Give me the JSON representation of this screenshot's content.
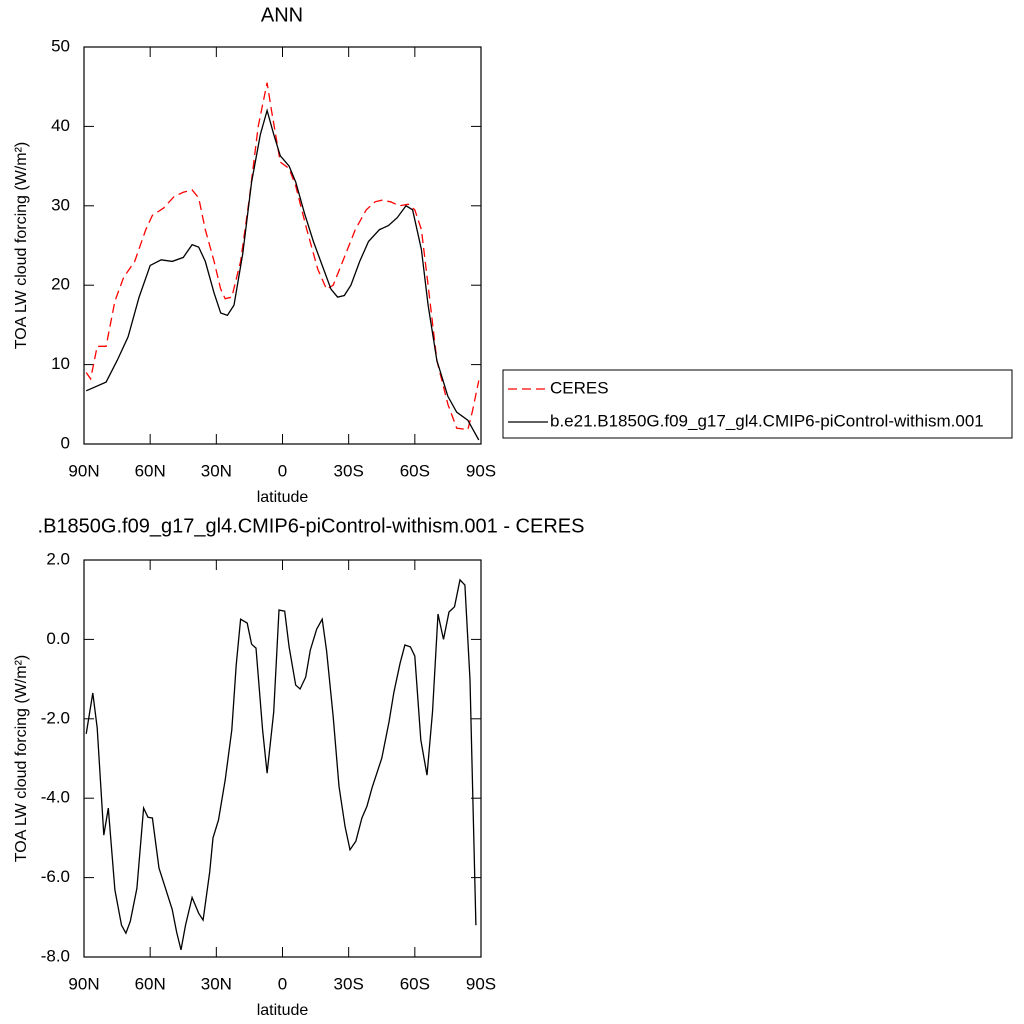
{
  "chart_data": [
    {
      "type": "line",
      "title": "ANN",
      "xlabel": "latitude",
      "ylabel": "TOA LW cloud forcing (W/m²)",
      "xlim": [
        90,
        -90
      ],
      "ylim": [
        0,
        50
      ],
      "xticks": [
        {
          "value": 90,
          "label": "90N"
        },
        {
          "value": 60,
          "label": "60N"
        },
        {
          "value": 30,
          "label": "30N"
        },
        0,
        {
          "value": -30,
          "label": "30S"
        },
        {
          "value": -60,
          "label": "60S"
        },
        {
          "value": -90,
          "label": "90S"
        }
      ],
      "yticks": [
        0,
        10,
        20,
        30,
        40,
        50
      ],
      "legend": "right",
      "series": [
        {
          "name": "CERES",
          "color": "#ff0000",
          "dashed": true,
          "x": [
            89,
            87,
            84,
            80,
            76,
            72,
            67,
            62,
            59,
            54,
            49,
            45,
            41,
            38,
            35,
            31,
            28,
            26,
            23,
            19,
            15,
            11,
            7,
            5,
            1,
            -3,
            -6,
            -11,
            -16,
            -20,
            -23,
            -28,
            -33,
            -38,
            -42,
            -45,
            -49,
            -53,
            -57,
            -60,
            -63,
            -66,
            -70,
            -75,
            -79,
            -84,
            -86,
            -89
          ],
          "values": [
            9,
            8.2,
            12.3,
            12.3,
            18,
            21,
            23,
            27,
            28.8,
            29.7,
            31.2,
            31.7,
            32,
            31,
            27,
            23,
            19.5,
            18.3,
            18.5,
            23,
            31,
            40,
            45.5,
            42,
            35.5,
            34.7,
            32.5,
            27,
            22,
            19.5,
            20,
            23.5,
            27,
            29.5,
            30.5,
            30.7,
            30.5,
            30,
            30.2,
            29.5,
            27,
            20,
            10.5,
            5,
            2,
            1.8,
            4,
            8
          ]
        },
        {
          "name": "b.e21.B1850G.f09_g17_gl4.CMIP6-piControl-withism.001",
          "color": "#000000",
          "dashed": false,
          "x": [
            89,
            80,
            75,
            70,
            65,
            60,
            55,
            50,
            45,
            41,
            38,
            35,
            31,
            28,
            25,
            22,
            18,
            14,
            10,
            7,
            4,
            1,
            -3,
            -6,
            -10,
            -14,
            -18,
            -22,
            -25,
            -28,
            -31,
            -35,
            -39,
            -44,
            -48,
            -52,
            -56,
            -59,
            -63,
            -66,
            -70,
            -75,
            -79,
            -84,
            -89
          ],
          "values": [
            6.7,
            7.8,
            10.5,
            13.5,
            18.5,
            22.5,
            23.2,
            23,
            23.5,
            25.1,
            24.8,
            23,
            19,
            16.5,
            16.2,
            17.5,
            24,
            33,
            39,
            42,
            39,
            36.3,
            35,
            33,
            29,
            25.5,
            22.5,
            19.5,
            18.5,
            18.7,
            20,
            23,
            25.5,
            27,
            27.5,
            28.5,
            30,
            29.5,
            24.5,
            17.5,
            10.5,
            6,
            4,
            3,
            0.5
          ]
        }
      ]
    },
    {
      "type": "line",
      "title": ".B1850G.f09_g17_gl4.CMIP6-piControl-withism.001 - CERES",
      "xlabel": "latitude",
      "ylabel": "TOA LW cloud forcing (W/m²)",
      "xlim": [
        90,
        -90
      ],
      "ylim": [
        -8,
        2
      ],
      "xticks": [
        {
          "value": 90,
          "label": "90N"
        },
        {
          "value": 60,
          "label": "60N"
        },
        {
          "value": 30,
          "label": "30N"
        },
        0,
        {
          "value": -30,
          "label": "30S"
        },
        {
          "value": -60,
          "label": "60S"
        },
        {
          "value": -90,
          "label": "90S"
        }
      ],
      "yticks": [
        {
          "value": -8,
          "label": "-8.0"
        },
        {
          "value": -6,
          "label": "-6.0"
        },
        {
          "value": -4,
          "label": "-4.0"
        },
        {
          "value": -2,
          "label": "-2.0"
        },
        {
          "value": 0,
          "label": "0.0"
        },
        {
          "value": 2,
          "label": "2.0"
        }
      ],
      "series": [
        {
          "color": "#000000",
          "dashed": false,
          "x": [
            89,
            86,
            84,
            81,
            79,
            76,
            73,
            71,
            69,
            66,
            63,
            61,
            59,
            56,
            53,
            50,
            48,
            46,
            44,
            41,
            38,
            36,
            33,
            31.5,
            29,
            26,
            23,
            21,
            19,
            16,
            14,
            12,
            9,
            7,
            4,
            1.6,
            -1,
            -3,
            -6,
            -8,
            -10.5,
            -12.6,
            -15.5,
            -18,
            -20,
            -23,
            -25.6,
            -28.4,
            -30.6,
            -33.3,
            -36,
            -38.3,
            -40.6,
            -45,
            -48.3,
            -50.5,
            -53.3,
            -55.5,
            -58,
            -60,
            -62.7,
            -65.5,
            -68,
            -70.5,
            -73,
            -75.5,
            -78,
            -80.5,
            -82.7,
            -85,
            -87.7
          ],
          "values": [
            -2.38,
            -1.35,
            -2.23,
            -4.93,
            -4.25,
            -6.31,
            -7.2,
            -7.4,
            -7.1,
            -6.27,
            -4.25,
            -4.48,
            -4.5,
            -5.76,
            -6.28,
            -6.8,
            -7.37,
            -7.82,
            -7.2,
            -6.5,
            -6.9,
            -7.07,
            -5.86,
            -5.0,
            -4.55,
            -3.54,
            -2.28,
            -0.65,
            0.51,
            0.41,
            -0.12,
            -0.22,
            -2.28,
            -3.37,
            -1.83,
            0.74,
            0.71,
            -0.19,
            -1.15,
            -1.25,
            -0.95,
            -0.27,
            0.26,
            0.51,
            -0.29,
            -1.95,
            -3.7,
            -4.72,
            -5.3,
            -5.08,
            -4.5,
            -4.2,
            -3.74,
            -2.99,
            -2.08,
            -1.33,
            -0.6,
            -0.14,
            -0.19,
            -0.42,
            -2.53,
            -3.42,
            -1.83,
            0.64,
            0,
            0.69,
            0.82,
            1.5,
            1.37,
            -1.02,
            -7.2
          ]
        }
      ]
    }
  ]
}
